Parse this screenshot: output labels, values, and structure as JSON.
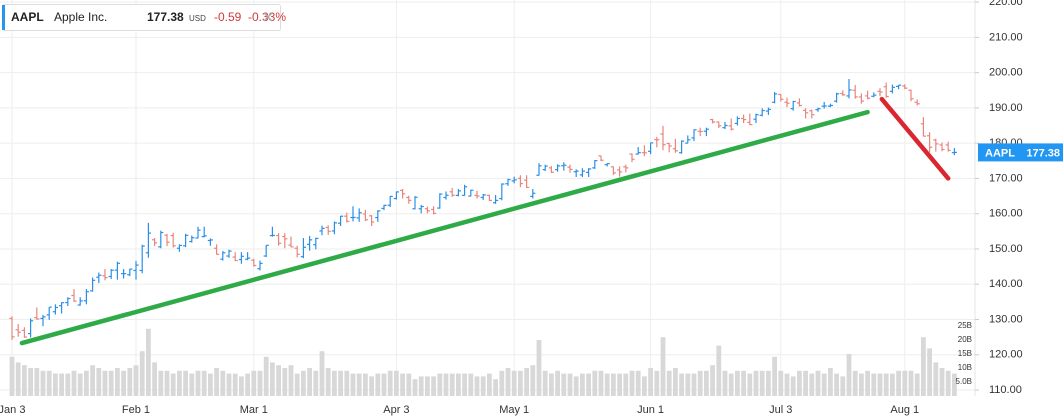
{
  "header": {
    "symbol": "AAPL",
    "name": "Apple Inc.",
    "price": "177.38",
    "currency": "USD",
    "change": "-0.59",
    "change_pct": "-0.33%"
  },
  "chart_data": {
    "type": "ohlc",
    "up_color": "#2b8fe8",
    "down_color": "#e8857d",
    "volume_color": "#d8d8d8",
    "grid": true,
    "last_label": {
      "color": "#2196f3"
    },
    "categories": [
      "Jan 3",
      null,
      null,
      null,
      null,
      null,
      null,
      null,
      null,
      null,
      null,
      null,
      null,
      null,
      null,
      null,
      null,
      null,
      null,
      null,
      "Feb 1",
      null,
      null,
      null,
      null,
      null,
      null,
      null,
      null,
      null,
      null,
      null,
      null,
      null,
      null,
      null,
      null,
      null,
      null,
      "Mar 1",
      null,
      null,
      null,
      null,
      null,
      null,
      null,
      null,
      null,
      null,
      null,
      null,
      null,
      null,
      null,
      null,
      null,
      null,
      null,
      null,
      null,
      null,
      "Apr 3",
      null,
      null,
      null,
      null,
      null,
      null,
      null,
      null,
      null,
      null,
      null,
      null,
      null,
      null,
      null,
      null,
      null,
      null,
      "May 1",
      null,
      null,
      null,
      null,
      null,
      null,
      null,
      null,
      null,
      null,
      null,
      null,
      null,
      null,
      null,
      null,
      null,
      null,
      null,
      null,
      null,
      "Jun 1",
      null,
      null,
      null,
      null,
      null,
      null,
      null,
      null,
      null,
      null,
      null,
      null,
      null,
      null,
      null,
      null,
      null,
      null,
      null,
      null,
      "Jul 3",
      null,
      null,
      null,
      null,
      null,
      null,
      null,
      null,
      null,
      null,
      null,
      null,
      null,
      null,
      null,
      null,
      null,
      null,
      null,
      "Aug 1",
      null,
      null,
      null,
      null,
      null,
      null,
      null,
      null
    ],
    "open": [
      130.3,
      127.1,
      126.9,
      126.0,
      130.5,
      130.3,
      131.3,
      132.2,
      133.9,
      134.8,
      136.8,
      134.1,
      135.3,
      138.1,
      142.0,
      142.4,
      142.2,
      144.0,
      143.0,
      142.7,
      143.9,
      143.9,
      148.9,
      152.6,
      150.6,
      153.9,
      153.8,
      150.2,
      150.9,
      152.1,
      153.1,
      153.5,
      152.4,
      150.2,
      147.1,
      148.0,
      147.7,
      147.0,
      147.1,
      146.8,
      144.4,
      148.0,
      153.8,
      153.8,
      153.5,
      151.1,
      150.2,
      147.8,
      151.3,
      151.2,
      155.1,
      156.1,
      155.1,
      157.3,
      159.3,
      158.9,
      158.8,
      159.9,
      159.4,
      158.9,
      161.5,
      162.4,
      164.3,
      166.6,
      164.6,
      161.4,
      161.4,
      161.4,
      161.2,
      161.6,
      164.6,
      166.2,
      165.2,
      165.2,
      165.0,
      165.2,
      164.6,
      165.2,
      163.1,
      164.3,
      168.5,
      169.3,
      170.0,
      169.5,
      164.9,
      170.9,
      172.5,
      173.0,
      172.5,
      173.6,
      173.2,
      171.9,
      171.0,
      171.7,
      173.0,
      176.4,
      173.9,
      173.3,
      172.4,
      173.3,
      176.9,
      176.9,
      177.3,
      177.7,
      181.0,
      182.6,
      179.9,
      178.4,
      177.3,
      180.0,
      181.5,
      183.4,
      183.4,
      186.7,
      186.0,
      184.4,
      184.9,
      185.6,
      187.0,
      185.9,
      186.8,
      187.9,
      189.1,
      191.6,
      193.8,
      191.6,
      189.8,
      191.4,
      189.3,
      189.2,
      189.5,
      190.5,
      190.5,
      191.9,
      194.1,
      193.4,
      195.0,
      193.1,
      193.4,
      193.3,
      194.7,
      196.0,
      194.7,
      196.1,
      196.2,
      195.0,
      191.6,
      185.5,
      182.1,
      180.9,
      179.5,
      179.5,
      177.3
    ],
    "high": [
      130.9,
      128.7,
      127.8,
      130.3,
      133.4,
      131.3,
      133.5,
      134.3,
      134.9,
      136.3,
      138.6,
      136.3,
      138.6,
      141.9,
      143.3,
      144.3,
      144.3,
      146.4,
      144.3,
      144.4,
      146.6,
      151.2,
      157.4,
      153.1,
      155.2,
      154.3,
      154.6,
      151.3,
      154.3,
      153.8,
      156.3,
      156.3,
      153.0,
      151.3,
      149.4,
      149.8,
      149.1,
      149.1,
      149.1,
      147.2,
      146.7,
      151.1,
      156.3,
      154.5,
      154.5,
      153.5,
      150.9,
      153.1,
      153.7,
      153.2,
      156.6,
      156.7,
      157.8,
      159.4,
      160.3,
      162.1,
      161.5,
      161.1,
      159.6,
      161.0,
      162.5,
      165.0,
      166.3,
      167.0,
      165.1,
      165.0,
      162.5,
      162.0,
      162.1,
      165.8,
      166.3,
      167.3,
      167.0,
      168.2,
      166.8,
      166.5,
      165.6,
      165.4,
      165.3,
      168.6,
      169.9,
      170.5,
      170.9,
      170.9,
      167.0,
      174.3,
      173.9,
      173.5,
      174.0,
      174.6,
      173.9,
      172.6,
      172.9,
      172.9,
      175.2,
      176.4,
      174.3,
      173.4,
      173.4,
      173.9,
      177.1,
      178.9,
      179.4,
      180.1,
      181.8,
      184.9,
      180.1,
      181.2,
      180.8,
      182.2,
      183.9,
      184.4,
      184.4,
      186.9,
      186.1,
      186.0,
      187.0,
      187.6,
      188.1,
      188.4,
      188.4,
      189.9,
      190.1,
      194.5,
      193.9,
      192.9,
      192.0,
      192.7,
      189.9,
      189.5,
      190.1,
      191.7,
      191.2,
      194.3,
      195.0,
      198.2,
      196.5,
      194.1,
      194.9,
      194.4,
      195.6,
      197.2,
      196.6,
      196.5,
      196.7,
      195.2,
      192.4,
      187.4,
      183.1,
      181.3,
      180.2,
      180.4,
      178.6
    ],
    "low": [
      124.2,
      125.1,
      124.8,
      124.9,
      129.9,
      128.1,
      129.9,
      131.4,
      131.7,
      133.8,
      135.0,
      133.9,
      134.3,
      137.9,
      140.3,
      141.1,
      141.5,
      141.3,
      141.6,
      142.3,
      141.3,
      143.1,
      147.5,
      150.8,
      150.2,
      150.8,
      150.4,
      149.2,
      150.5,
      151.8,
      153.0,
      153.3,
      150.9,
      148.4,
      146.7,
      147.5,
      146.6,
      145.8,
      146.8,
      145.0,
      143.9,
      147.7,
      153.5,
      150.9,
      150.2,
      150.5,
      147.6,
      147.4,
      149.5,
      149.9,
      153.9,
      154.0,
      154.2,
      156.5,
      157.5,
      157.8,
      157.7,
      157.9,
      156.5,
      157.7,
      161.0,
      161.9,
      164.0,
      164.3,
      162.8,
      161.2,
      160.1,
      160.1,
      159.8,
      161.4,
      164.0,
      164.8,
      164.9,
      165.1,
      164.9,
      164.3,
      163.9,
      163.6,
      162.8,
      163.8,
      167.9,
      168.6,
      167.5,
      167.3,
      164.3,
      170.8,
      172.1,
      171.5,
      171.9,
      172.2,
      171.6,
      170.4,
      170.4,
      170.4,
      172.7,
      174.9,
      173.4,
      171.0,
      170.5,
      171.7,
      174.6,
      176.8,
      176.3,
      176.9,
      178.8,
      178.0,
      177.4,
      177.3,
      177.0,
      180.0,
      180.6,
      182.0,
      182.0,
      185.6,
      184.3,
      184.0,
      183.6,
      185.0,
      185.7,
      185.1,
      185.7,
      187.6,
      188.0,
      191.3,
      191.8,
      190.2,
      189.2,
      190.4,
      187.0,
      187.0,
      188.9,
      189.8,
      190.2,
      191.5,
      193.4,
      192.7,
      192.6,
      191.2,
      192.4,
      193.0,
      193.3,
      192.9,
      194.1,
      195.3,
      195.3,
      191.9,
      190.7,
      181.9,
      177.4,
      177.6,
      177.7,
      177.6,
      176.6
    ],
    "close": [
      125.07,
      126.36,
      125.02,
      129.62,
      130.15,
      130.73,
      133.49,
      133.41,
      134.76,
      135.94,
      135.21,
      135.27,
      137.87,
      141.11,
      142.53,
      141.86,
      143.96,
      145.93,
      143.0,
      144.29,
      145.43,
      150.82,
      154.5,
      151.73,
      154.65,
      151.92,
      150.87,
      151.01,
      153.85,
      153.2,
      155.33,
      153.71,
      152.55,
      148.48,
      148.91,
      149.4,
      146.71,
      147.92,
      147.41,
      145.31,
      145.91,
      151.03,
      153.83,
      151.6,
      152.87,
      150.59,
      148.5,
      150.47,
      152.59,
      152.99,
      155.85,
      155.0,
      157.4,
      159.28,
      157.83,
      158.93,
      160.25,
      158.28,
      157.65,
      160.77,
      162.36,
      164.9,
      166.17,
      165.63,
      163.76,
      164.66,
      162.03,
      160.8,
      160.1,
      165.56,
      165.21,
      165.23,
      166.47,
      167.63,
      166.65,
      165.02,
      165.33,
      163.77,
      163.76,
      168.41,
      169.68,
      169.59,
      168.54,
      167.45,
      165.79,
      173.57,
      173.5,
      171.77,
      173.56,
      173.75,
      172.57,
      172.07,
      172.07,
      172.69,
      175.05,
      175.16,
      174.2,
      171.56,
      171.84,
      172.99,
      175.43,
      177.3,
      177.25,
      180.09,
      180.95,
      179.58,
      179.21,
      177.82,
      180.57,
      180.96,
      183.79,
      183.31,
      183.95,
      186.01,
      184.92,
      185.01,
      183.96,
      187.0,
      186.68,
      185.27,
      188.06,
      189.25,
      189.59,
      193.97,
      192.46,
      191.33,
      191.81,
      190.68,
      188.61,
      188.08,
      189.77,
      190.54,
      190.69,
      193.99,
      193.73,
      195.1,
      193.13,
      191.94,
      192.75,
      193.62,
      194.5,
      193.22,
      195.83,
      196.45,
      195.61,
      192.58,
      191.17,
      181.99,
      178.85,
      179.8,
      178.19,
      177.97,
      177.38
    ],
    "volume": [
      14,
      12,
      11,
      10,
      10,
      9,
      9,
      8,
      8,
      8,
      9,
      8,
      9,
      11,
      10,
      9,
      9,
      10,
      9,
      10,
      11,
      16,
      24,
      12,
      9,
      9,
      8,
      9,
      9,
      8,
      9,
      9,
      8,
      10,
      9,
      8,
      8,
      7,
      8,
      9,
      9,
      14,
      12,
      11,
      10,
      11,
      8,
      9,
      10,
      9,
      16,
      10,
      9,
      9,
      9,
      8,
      8,
      8,
      7,
      8,
      8,
      9,
      9,
      8,
      8,
      6,
      7,
      7,
      7,
      8,
      8,
      8,
      8,
      8,
      8,
      7,
      7,
      8,
      6,
      9,
      10,
      9,
      9,
      10,
      11,
      20,
      9,
      8,
      9,
      8,
      8,
      7,
      8,
      8,
      9,
      9,
      8,
      8,
      8,
      8,
      9,
      9,
      7,
      10,
      9,
      21,
      9,
      10,
      8,
      8,
      8,
      9,
      9,
      11,
      18,
      9,
      8,
      9,
      9,
      8,
      9,
      9,
      9,
      14,
      9,
      8,
      7,
      9,
      9,
      8,
      9,
      8,
      10,
      8,
      7,
      15,
      9,
      8,
      9,
      8,
      8,
      8,
      8,
      9,
      9,
      9,
      8,
      21,
      17,
      12,
      10,
      9,
      8
    ],
    "ylim": [
      108.3,
      220.6
    ],
    "yticks": [
      {
        "value": 110,
        "label": "110.00"
      },
      {
        "value": 120,
        "label": "120.00"
      },
      {
        "value": 130,
        "label": "130.00"
      },
      {
        "value": 140,
        "label": "140.00"
      },
      {
        "value": 150,
        "label": "150.00"
      },
      {
        "value": 160,
        "label": "160.00"
      },
      {
        "value": 170,
        "label": "170.00"
      },
      {
        "value": 180,
        "label": "180.00"
      },
      {
        "value": 190,
        "label": "190.00"
      },
      {
        "value": 200,
        "label": "200.00"
      },
      {
        "value": 210,
        "label": "210.00"
      },
      {
        "value": 220,
        "label": "220.00"
      }
    ],
    "y2lim": [
      0,
      141.4
    ],
    "y2ticks": [
      {
        "value": 5,
        "label": "5.0B"
      },
      {
        "value": 10,
        "label": "10B"
      },
      {
        "value": 15,
        "label": "15B"
      },
      {
        "value": 20,
        "label": "20B"
      },
      {
        "value": 25,
        "label": "25B"
      }
    ],
    "trend_lines": [
      {
        "color": "#2eaa47",
        "x": [
          1.6,
          138
        ],
        "y": [
          123.3,
          188.8
        ]
      },
      {
        "color": "#d9262f",
        "x": [
          140.3,
          151
        ],
        "y": [
          192.5,
          170.0
        ]
      }
    ]
  }
}
